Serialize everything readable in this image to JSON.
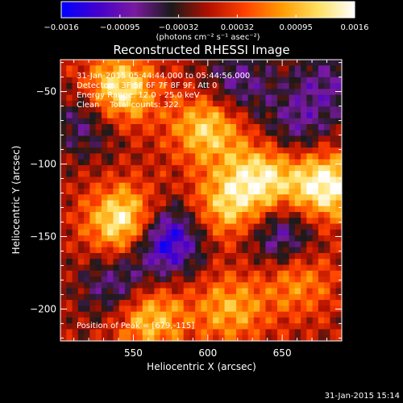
{
  "chart_data": {
    "type": "heatmap",
    "title": "Reconstructed RHESSI Image",
    "xlabel": "Heliocentric X (arcsec)",
    "ylabel": "Heliocentric Y (arcsec)",
    "xlim": [
      501,
      690
    ],
    "ylim": [
      -222,
      -28
    ],
    "x_ticks": [
      550,
      600,
      650
    ],
    "y_ticks": [
      -50,
      -100,
      -150,
      -200
    ],
    "x_tick_labels": [
      "550",
      "600",
      "650"
    ],
    "y_tick_labels": [
      "−50",
      "−100",
      "−150",
      "−200"
    ],
    "colorbar": {
      "min": -0.0016,
      "max": 0.0016,
      "tick_labels": [
        "−0.0016",
        "−0.00095",
        "−0.00032",
        "0.00032",
        "0.00095",
        "0.0016"
      ],
      "unit_label": "(photons cm⁻² s⁻¹ asec⁻²)",
      "colors": [
        "#0000ff",
        "#4400cc",
        "#7a1aa0",
        "#1a1a1a",
        "#b01000",
        "#ff4000",
        "#ff9a00",
        "#ffe060",
        "#ffffff"
      ]
    },
    "annotations": [
      "31-Jan-2015 05:44:44.000 to 05:44:56.000",
      "Detectors: 3F 5F 6F 7F 8F 9F, Att 0",
      "Energy Range: 12.0 - 25.0 keV",
      "Clean    Total counts: 322."
    ],
    "peak_label": "Position of Peak = [679,-115]",
    "peak": [
      679,
      -115
    ],
    "sources": [
      {
        "x": 540,
        "y": -50,
        "value": 0.0015
      },
      {
        "x": 600,
        "y": -75,
        "value": 0.0012
      },
      {
        "x": 636,
        "y": -110,
        "value": 0.0013
      },
      {
        "x": 679,
        "y": -115,
        "value": 0.0016
      },
      {
        "x": 544,
        "y": -140,
        "value": 0.0016
      },
      {
        "x": 612,
        "y": -130,
        "value": 0.001
      },
      {
        "x": 560,
        "y": -205,
        "value": 0.0012
      },
      {
        "x": 615,
        "y": -200,
        "value": 0.0009
      },
      {
        "x": 660,
        "y": -180,
        "value": 0.0008
      },
      {
        "x": 572,
        "y": -152,
        "value": -0.0016
      },
      {
        "x": 650,
        "y": -150,
        "value": -0.001
      },
      {
        "x": 540,
        "y": -185,
        "value": -0.0009
      },
      {
        "x": 520,
        "y": -70,
        "value": -0.0008
      },
      {
        "x": 680,
        "y": -45,
        "value": -0.0007
      },
      {
        "x": 620,
        "y": -45,
        "value": -0.0008
      },
      {
        "x": 660,
        "y": -75,
        "value": -0.0007
      }
    ]
  },
  "footer": {
    "timestamp": "31-Jan-2015 15:14"
  }
}
